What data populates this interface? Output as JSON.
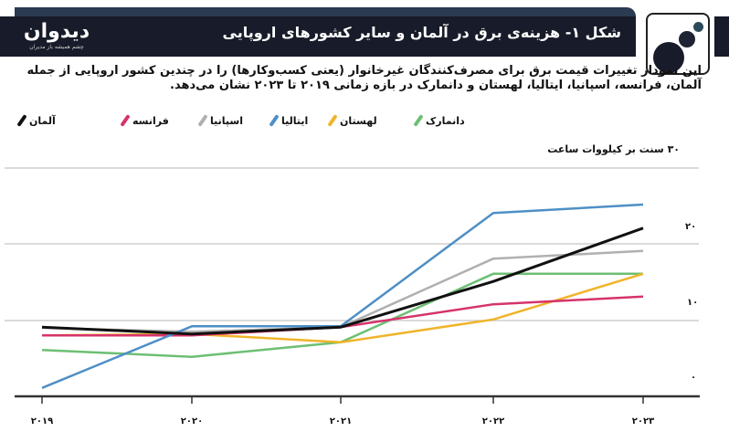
{
  "header": {
    "brand_name": "دیدوان",
    "brand_tagline": "چشم همیشه باز مدیران",
    "title": "شکل ۱- هزینه‌ی برق در آلمان و سایر کشورهای اروپایی"
  },
  "description": "این نمودار تغییرات قیمت برق برای مصرف‌کنندگان غیرخانوار (یعنی کسب‌وکارها) را در چندین کشور اروپایی از جمله آلمان، فرانسه، اسپانیا، ایتالیا، لهستان و دانمارک در بازه زمانی ۲۰۱۹ تا ۲۰۲۳ نشان می‌دهد.",
  "legend": [
    {
      "label": "آلمان",
      "color": "#111111"
    },
    {
      "label": "فرانسه",
      "color": "#d6336c"
    },
    {
      "label": "اسپانیا",
      "color": "#b0b0b0"
    },
    {
      "label": "ایتالیا",
      "color": "#4f8fc6"
    },
    {
      "label": "لهستان",
      "color": "#f0b429"
    },
    {
      "label": "دانمارک",
      "color": "#6dbf73"
    }
  ],
  "axis": {
    "unit_label": "۳۰ سنت بر کیلووات ساعت",
    "y_ticks": [
      "۲۰",
      "۱۰",
      "۰"
    ],
    "x_ticks": [
      "۲۰۱۹",
      "۲۰۲۰",
      "۲۰۲۱",
      "۲۰۲۲",
      "۲۰۲۳"
    ]
  },
  "chart_data": {
    "type": "line",
    "title": "شکل ۱- هزینه‌ی برق در آلمان و سایر کشورهای اروپایی",
    "xlabel": "",
    "ylabel": "سنت بر کیلووات ساعت",
    "x": [
      "2019",
      "2020",
      "2021",
      "2022",
      "2023"
    ],
    "ylim": [
      0,
      30
    ],
    "y_ticks": [
      0,
      10,
      20,
      30
    ],
    "grid": true,
    "legend_position": "top",
    "series": [
      {
        "name": "آلمان",
        "color": "#111111",
        "values": [
          9.1,
          8.2,
          9.1,
          15.1,
          22.1
        ]
      },
      {
        "name": "فرانسه",
        "color": "#d6336c",
        "values": [
          8.0,
          8.0,
          9.1,
          12.1,
          13.1
        ]
      },
      {
        "name": "اسپانیا",
        "color": "#b0b0b0",
        "values": [
          9.0,
          8.5,
          9.1,
          18.1,
          19.1
        ]
      },
      {
        "name": "ایتالیا",
        "color": "#4f8fc6",
        "values": [
          1.1,
          9.2,
          9.2,
          24.1,
          25.2
        ]
      },
      {
        "name": "لهستان",
        "color": "#f0b429",
        "values": [
          8.0,
          8.2,
          7.1,
          10.1,
          16.1
        ]
      },
      {
        "name": "دانمارک",
        "color": "#6dbf73",
        "values": [
          6.1,
          5.2,
          7.1,
          16.1,
          16.1
        ]
      }
    ]
  }
}
